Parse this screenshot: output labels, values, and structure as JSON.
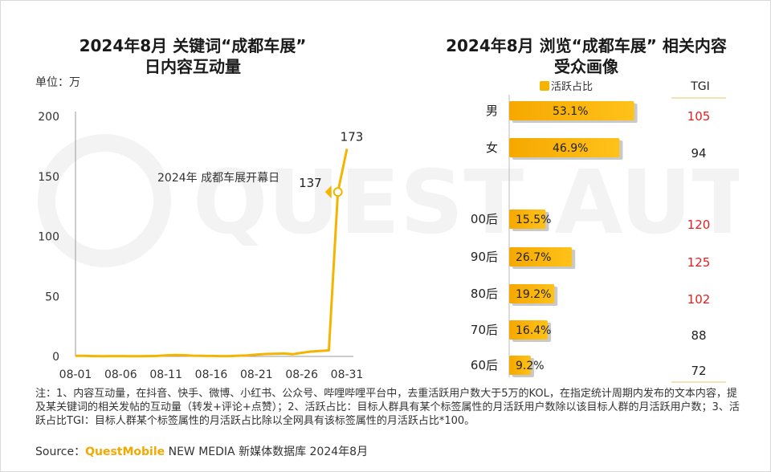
{
  "left_chart": {
    "title_line1": "2024年8月 关键词“成都车展”",
    "title_line2": "日内容互动量",
    "unit": "单位：万",
    "annotation": "2024年 成都车展开幕日"
  },
  "right_chart": {
    "title_line1": "2024年8月 浏览“成都车展” 相关内容",
    "title_line2": "受众画像",
    "legend": "活跃占比",
    "tgi_header": "TGI"
  },
  "notes": "注：1、内容互动量，在抖音、快手、微博、小红书、公众号、哔哩哔哩平台中，去重活跃用户数大于5万的KOL，在指定统计周期内发布的文本内容，提及某关键词的相关发帖的互动量（转发+评论+点赞）；2、活跃占比：目标人群具有某个标签属性的月活跃用户数除以该目标人群的月活跃用户数；3、活跃占比TGI：目标人群某个标签属性的月活跃占比除以全网具有该标签属性的月活跃占比*100。",
  "source": {
    "prefix": "Source：",
    "brand": "QuestMobile",
    "suffix": " NEW MEDIA 新媒体数据库 2024年8月"
  },
  "watermark": "QUEST AUTO",
  "colors": {
    "accent": "#f5b400",
    "line": "#f5b400",
    "tgi_high": "#e02020",
    "tgi_normal": "#222222"
  },
  "chart_data": [
    {
      "type": "line",
      "title": "2024年8月 关键词“成都车展”日内容互动量",
      "ylabel": "单位：万",
      "ylim": [
        0,
        200
      ],
      "yticks": [
        "0",
        "50",
        "100",
        "150",
        "200"
      ],
      "xticks": [
        "08-01",
        "08-06",
        "08-11",
        "08-16",
        "08-21",
        "08-26",
        "08-31"
      ],
      "x": [
        "08-01",
        "08-02",
        "08-03",
        "08-04",
        "08-05",
        "08-06",
        "08-07",
        "08-08",
        "08-09",
        "08-10",
        "08-11",
        "08-12",
        "08-13",
        "08-14",
        "08-15",
        "08-16",
        "08-17",
        "08-18",
        "08-19",
        "08-20",
        "08-21",
        "08-22",
        "08-23",
        "08-24",
        "08-25",
        "08-26",
        "08-27",
        "08-28",
        "08-29",
        "08-30",
        "08-31"
      ],
      "values": [
        0.5,
        0.5,
        0.3,
        0.2,
        0.3,
        0.3,
        0.2,
        0.2,
        0.3,
        0.4,
        0.8,
        1.2,
        1.0,
        0.6,
        0.5,
        0.4,
        0.3,
        0.3,
        0.6,
        0.8,
        1.5,
        2.0,
        2.2,
        2.4,
        1.8,
        3.0,
        4.0,
        4.5,
        5.0,
        137,
        173
      ],
      "data_labels": [
        {
          "x": "08-30",
          "value": "137"
        },
        {
          "x": "08-31",
          "value": "173"
        }
      ]
    },
    {
      "type": "bar",
      "title": "2024年8月 浏览“成都车展” 相关内容受众画像",
      "orientation": "horizontal",
      "categories": [
        "男",
        "女",
        "00后",
        "90后",
        "80后",
        "70后",
        "60后"
      ],
      "series": [
        {
          "name": "活跃占比",
          "values": [
            53.1,
            46.9,
            15.5,
            26.7,
            19.2,
            16.4,
            9.2
          ],
          "labels": [
            "53.1%",
            "46.9%",
            "15.5%",
            "26.7%",
            "19.2%",
            "16.4%",
            "9.2%"
          ]
        }
      ],
      "tgi": [
        "105",
        "94",
        "120",
        "125",
        "102",
        "88",
        "72"
      ],
      "tgi_highlight": [
        true,
        false,
        true,
        true,
        true,
        false,
        false
      ]
    }
  ]
}
